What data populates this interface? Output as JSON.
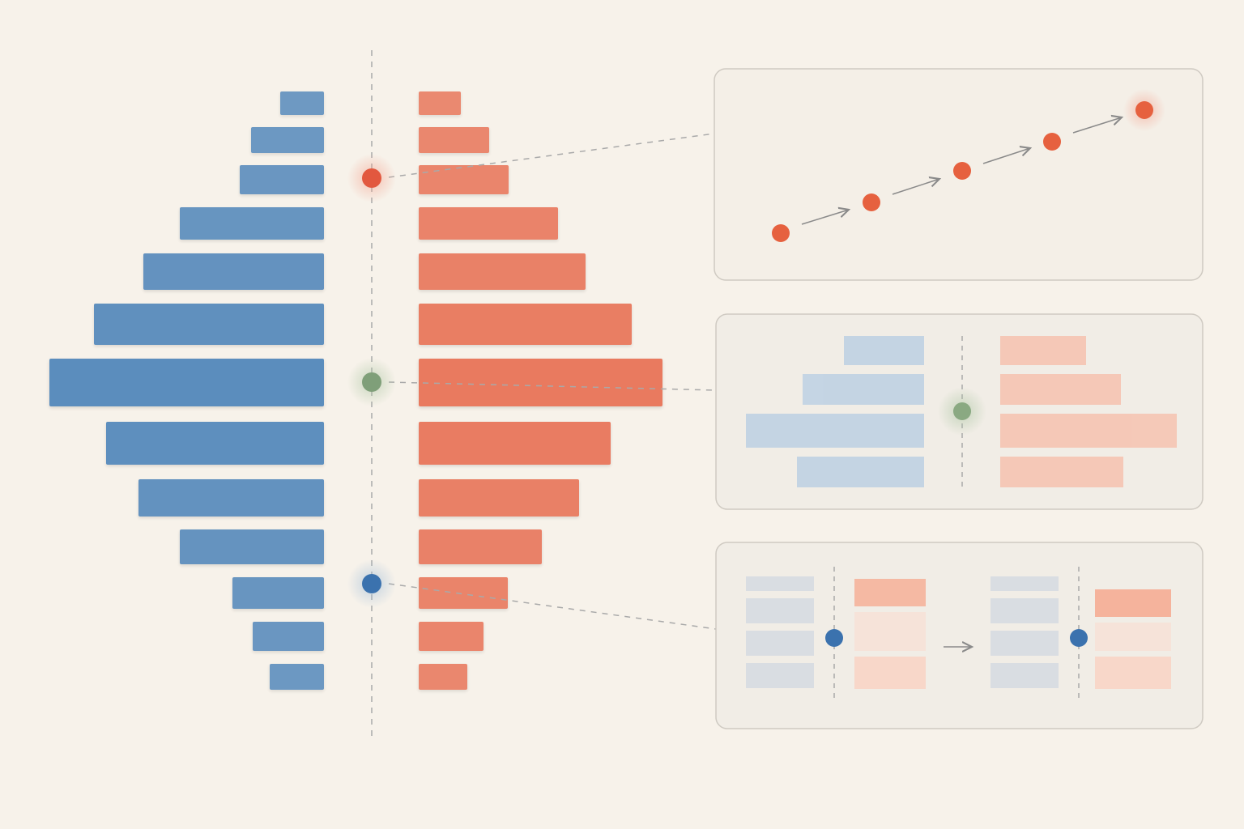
{
  "chart_data": {
    "type": "butterfly",
    "series": [
      {
        "color": "#5b8dbd",
        "values": [
          54,
          90,
          104,
          178,
          223,
          284,
          339,
          269,
          229,
          178,
          113,
          88,
          67
        ]
      },
      {
        "color": "#e97a5f",
        "values": [
          52,
          87,
          111,
          172,
          206,
          263,
          301,
          237,
          198,
          152,
          110,
          80,
          60
        ]
      }
    ]
  }
}
